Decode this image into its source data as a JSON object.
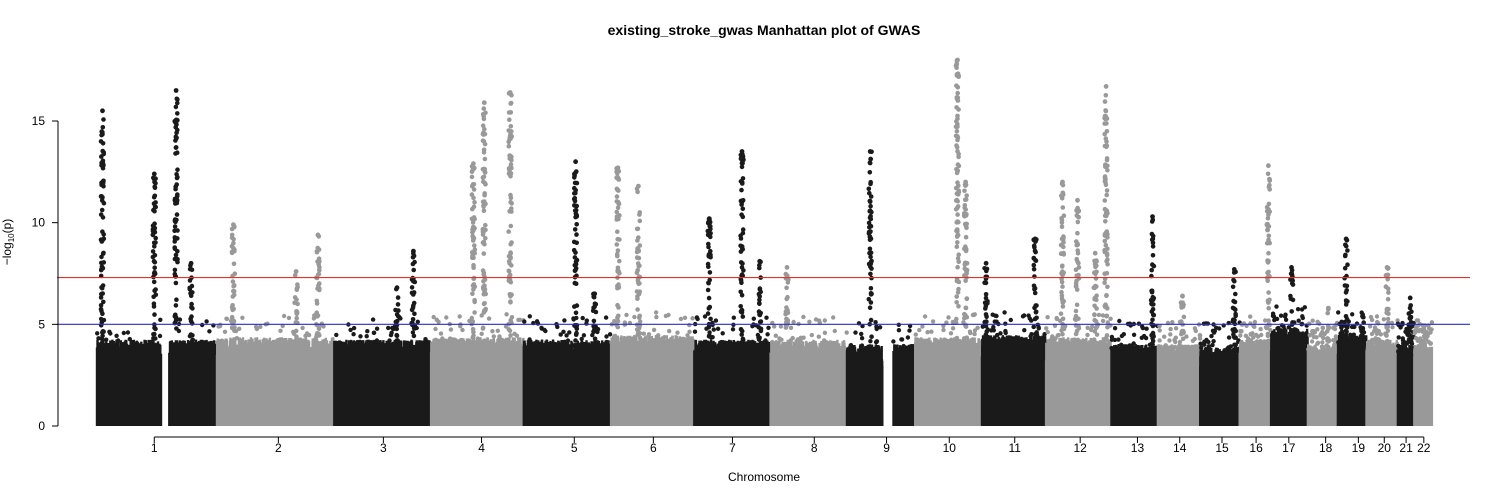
{
  "chart_data": {
    "type": "scatter",
    "title": "existing_stroke_gwas Manhattan plot of GWAS",
    "xlabel": "Chromosome",
    "ylabel_main": "−log",
    "ylabel_sub": "10",
    "ylabel_tail": "(p)",
    "ylim": [
      0,
      18
    ],
    "yticks": [
      0,
      5,
      10,
      15
    ],
    "thresholds": [
      {
        "name": "genome-wide",
        "value": 7.3,
        "color": "#e8302a"
      },
      {
        "name": "suggestive",
        "value": 5.0,
        "color": "#2a2ad0"
      }
    ],
    "colors": {
      "odd": "#1a1a1a",
      "even": "#999999"
    },
    "chromosomes": [
      {
        "label": "1",
        "span": [
          0.0,
          8.8
        ],
        "label_at": 4.2,
        "peak": 16.5,
        "base": 3.8,
        "peaks": [
          {
            "pos": 0.4,
            "y": 15.5
          },
          {
            "pos": 4.2,
            "y": 12.4
          },
          {
            "pos": 5.8,
            "y": 16.5
          },
          {
            "pos": 6.9,
            "y": 8.0
          }
        ],
        "gap": [
          4.7,
          5.3
        ]
      },
      {
        "label": "2",
        "span": [
          8.8,
          17.4
        ],
        "label_at": 13.3,
        "peak": 9.9,
        "base": 3.9,
        "peaks": [
          {
            "pos": 10.0,
            "y": 9.9
          },
          {
            "pos": 14.6,
            "y": 7.6
          },
          {
            "pos": 16.2,
            "y": 9.4
          }
        ]
      },
      {
        "label": "3",
        "span": [
          17.4,
          24.5
        ],
        "label_at": 21.0,
        "peak": 8.6,
        "base": 3.8,
        "peaks": [
          {
            "pos": 22.0,
            "y": 6.8
          },
          {
            "pos": 23.2,
            "y": 8.6
          }
        ]
      },
      {
        "label": "4",
        "span": [
          24.5,
          31.3
        ],
        "label_at": 28.2,
        "peak": 16.4,
        "base": 3.9,
        "peaks": [
          {
            "pos": 27.6,
            "y": 12.9
          },
          {
            "pos": 28.4,
            "y": 15.9
          },
          {
            "pos": 30.3,
            "y": 16.4
          }
        ]
      },
      {
        "label": "5",
        "span": [
          31.3,
          37.7
        ],
        "label_at": 35.0,
        "peak": 13.0,
        "base": 3.8,
        "peaks": [
          {
            "pos": 35.1,
            "y": 13.0
          },
          {
            "pos": 36.5,
            "y": 6.5
          }
        ]
      },
      {
        "label": "6",
        "span": [
          37.7,
          43.8
        ],
        "label_at": 40.8,
        "peak": 12.7,
        "base": 4.0,
        "peaks": [
          {
            "pos": 38.2,
            "y": 12.7
          },
          {
            "pos": 39.7,
            "y": 11.8
          }
        ]
      },
      {
        "label": "7",
        "span": [
          43.8,
          49.4
        ],
        "label_at": 46.6,
        "peak": 13.5,
        "base": 3.8,
        "peaks": [
          {
            "pos": 44.9,
            "y": 10.2
          },
          {
            "pos": 47.3,
            "y": 13.5
          },
          {
            "pos": 48.6,
            "y": 8.1
          }
        ]
      },
      {
        "label": "8",
        "span": [
          49.4,
          55.0
        ],
        "label_at": 52.6,
        "peak": 7.8,
        "base": 3.8,
        "peaks": [
          {
            "pos": 50.6,
            "y": 7.8
          }
        ]
      },
      {
        "label": "9",
        "span": [
          55.0,
          60.0
        ],
        "label_at": 57.9,
        "peak": 13.5,
        "base": 3.6,
        "peaks": [
          {
            "pos": 56.7,
            "y": 13.5
          }
        ],
        "gap": [
          57.6,
          58.4
        ]
      },
      {
        "label": "10",
        "span": [
          60.0,
          64.9
        ],
        "label_at": 62.5,
        "peak": 18.0,
        "base": 3.9,
        "peaks": [
          {
            "pos": 63.1,
            "y": 18.0
          },
          {
            "pos": 63.7,
            "y": 12.0
          }
        ]
      },
      {
        "label": "11",
        "span": [
          64.9,
          69.6
        ],
        "label_at": 67.3,
        "peak": 9.2,
        "base": 4.0,
        "peaks": [
          {
            "pos": 65.2,
            "y": 8.0
          },
          {
            "pos": 68.8,
            "y": 9.2
          }
        ]
      },
      {
        "label": "12",
        "span": [
          69.6,
          74.4
        ],
        "label_at": 72.1,
        "peak": 16.7,
        "base": 3.9,
        "peaks": [
          {
            "pos": 70.8,
            "y": 12.0
          },
          {
            "pos": 71.9,
            "y": 11.1
          },
          {
            "pos": 73.2,
            "y": 8.5
          },
          {
            "pos": 74.0,
            "y": 16.7
          }
        ]
      },
      {
        "label": "13",
        "span": [
          74.4,
          77.8
        ],
        "label_at": 76.3,
        "peak": 10.3,
        "base": 3.6,
        "peaks": [
          {
            "pos": 77.4,
            "y": 10.3
          }
        ]
      },
      {
        "label": "14",
        "span": [
          77.8,
          80.9
        ],
        "label_at": 79.4,
        "peak": 6.4,
        "base": 3.6,
        "peaks": [
          {
            "pos": 79.6,
            "y": 6.4
          }
        ]
      },
      {
        "label": "15",
        "span": [
          80.9,
          83.8
        ],
        "label_at": 82.5,
        "peak": 7.7,
        "base": 3.5,
        "peaks": [
          {
            "pos": 83.4,
            "y": 7.7
          }
        ]
      },
      {
        "label": "16",
        "span": [
          83.8,
          86.1
        ],
        "label_at": 85.0,
        "peak": 12.8,
        "base": 3.8,
        "peaks": [
          {
            "pos": 85.9,
            "y": 12.8
          }
        ]
      },
      {
        "label": "17",
        "span": [
          86.1,
          88.8
        ],
        "label_at": 87.4,
        "peak": 7.8,
        "base": 4.3,
        "peaks": [
          {
            "pos": 87.6,
            "y": 7.8
          }
        ]
      },
      {
        "label": "18",
        "span": [
          88.8,
          91.0
        ],
        "label_at": 90.1,
        "peak": 5.8,
        "base": 3.6,
        "peaks": [
          {
            "pos": 90.3,
            "y": 5.8
          }
        ]
      },
      {
        "label": "19",
        "span": [
          91.0,
          93.1
        ],
        "label_at": 92.5,
        "peak": 9.2,
        "base": 4.0,
        "peaks": [
          {
            "pos": 91.6,
            "y": 9.2
          },
          {
            "pos": 92.8,
            "y": 5.4
          }
        ]
      },
      {
        "label": "20",
        "span": [
          93.1,
          95.4
        ],
        "label_at": 94.4,
        "peak": 7.8,
        "base": 3.8,
        "peaks": [
          {
            "pos": 94.6,
            "y": 7.8
          }
        ]
      },
      {
        "label": "21",
        "span": [
          95.4,
          96.6
        ],
        "label_at": 96.0,
        "peak": 6.3,
        "base": 3.6,
        "peaks": [
          {
            "pos": 96.3,
            "y": 6.3
          }
        ]
      },
      {
        "label": "22",
        "span": [
          96.6,
          97.9
        ],
        "label_at": 97.3,
        "peak": 4.8,
        "base": 3.6,
        "peaks": [
          {
            "pos": 97.3,
            "y": 4.8
          }
        ]
      }
    ]
  }
}
